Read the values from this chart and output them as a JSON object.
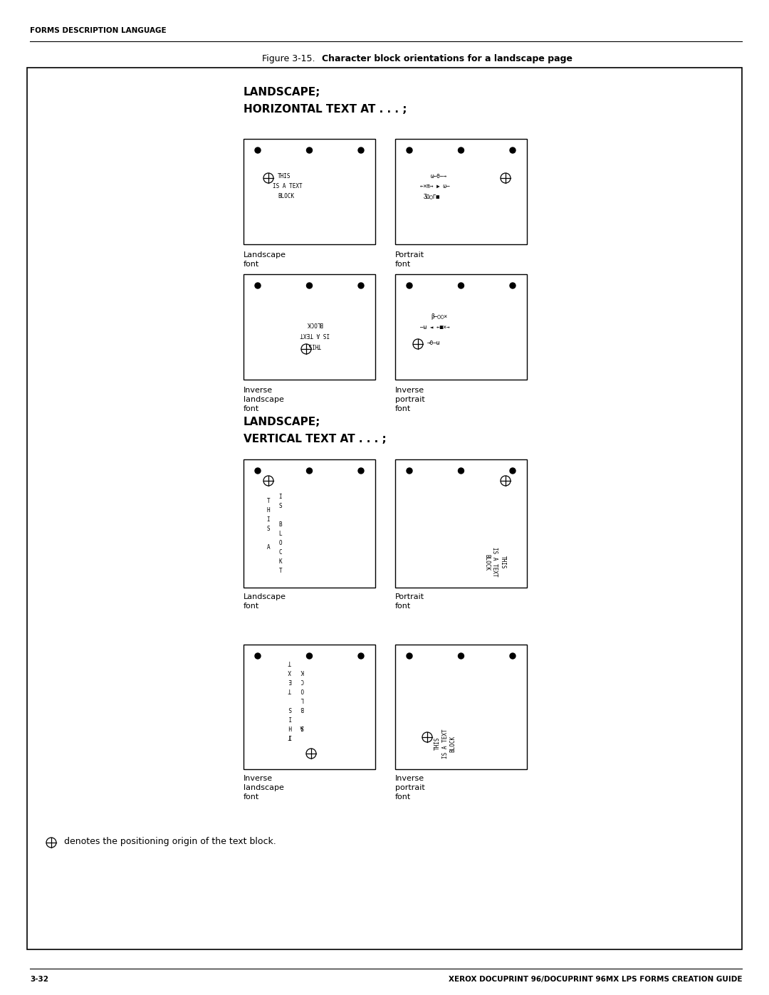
{
  "page_width": 10.8,
  "page_height": 13.97,
  "bg_color": "#ffffff",
  "header_text": "FORMS DESCRIPTION LANGUAGE",
  "footer_left": "3-32",
  "footer_right": "XEROX DOCUPRINT 96/DOCUPRINT 96MX LPS FORMS CREATION GUIDE",
  "figure_label_normal": "Figure 3-15.  ",
  "figure_label_bold": "Character block orientations for a landscape page",
  "section1_title_line1": "LANDSCAPE;",
  "section1_title_line2": "HORIZONTAL TEXT AT . . . ;",
  "section2_title_line1": "LANDSCAPE;",
  "section2_title_line2": "VERTICAL TEXT AT . . . ;",
  "box1_label": "Landscape\nfont",
  "box2_label": "Portrait\nfont",
  "box3_label": "Inverse\nlandscape\nfont",
  "box4_label": "Inverse\nportrait\nfont",
  "box5_label": "Landscape\nfont",
  "box6_label": "Portrait\nfont",
  "box7_label": "Inverse\nlandscape\nfont",
  "box8_label": "Inverse\nportrait\nfont",
  "footnote_text": "denotes the positioning origin of the text block."
}
